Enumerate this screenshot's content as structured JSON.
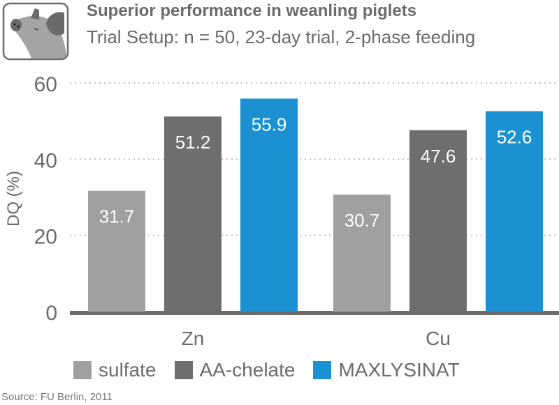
{
  "header": {
    "icon": "pig-icon",
    "title": "Superior performance in weanling piglets",
    "subtitle": "Trial Setup: n = 50, 23-day trial, 2-phase feeding"
  },
  "source": "Source: FU Berlin, 2011",
  "chart_data": {
    "type": "bar",
    "title": "",
    "xlabel": "",
    "ylabel": "DQ (%)",
    "ylim": [
      0,
      60
    ],
    "yticks": [
      "0",
      "20",
      "40",
      "60"
    ],
    "grid": "horizontal dotted",
    "legend_position": "bottom",
    "categories": [
      "Zn",
      "Cu"
    ],
    "series": [
      {
        "name": "sulfate",
        "color": "#a0a0a0",
        "values": [
          31.7,
          30.7
        ],
        "labels": [
          "31.7",
          "30.7"
        ]
      },
      {
        "name": "AA-chelate",
        "color": "#6e6e6e",
        "values": [
          51.2,
          47.6
        ],
        "labels": [
          "51.2",
          "47.6"
        ]
      },
      {
        "name": "MAXLYSINAT",
        "color": "#1b91d1",
        "values": [
          55.9,
          52.6
        ],
        "labels": [
          "55.9",
          "52.6"
        ]
      }
    ]
  }
}
